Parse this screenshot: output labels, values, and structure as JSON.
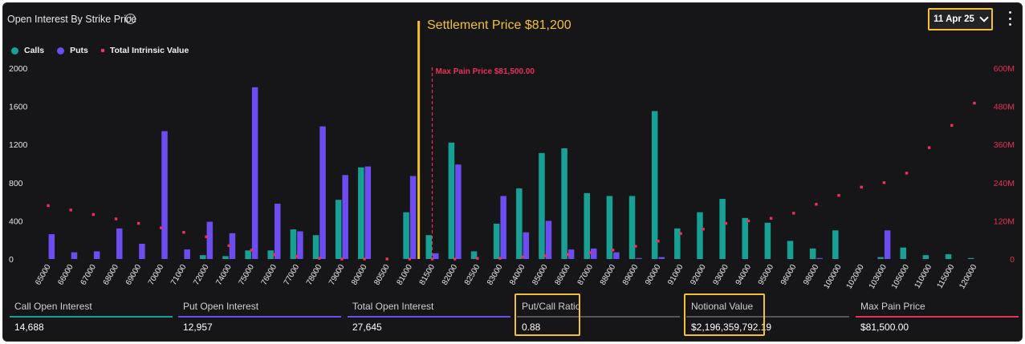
{
  "header": {
    "title": "Open Interest By Strike Price",
    "date_selected": "11 Apr 25"
  },
  "legend": {
    "calls": "Calls",
    "puts": "Puts",
    "intrinsic": "Total Intrinsic Value"
  },
  "annotation": {
    "settlement": "Settlement Price $81,200"
  },
  "colors": {
    "calls": "#17a195",
    "puts": "#6d4cf0",
    "intrinsic": "#f0305a",
    "settlement": "#f2c12e",
    "maxpain": "#e83058"
  },
  "icons": [
    "info-icon",
    "chevron-down-icon",
    "kebab-menu-icon"
  ],
  "chart_data": {
    "type": "bar",
    "categories": [
      "65000",
      "66000",
      "67000",
      "68000",
      "69000",
      "70000",
      "71000",
      "72000",
      "74000",
      "75000",
      "76000",
      "77000",
      "78000",
      "79000",
      "80000",
      "80500",
      "81000",
      "81500",
      "82000",
      "82500",
      "83000",
      "84000",
      "85000",
      "86000",
      "87000",
      "88000",
      "89000",
      "90000",
      "91000",
      "92000",
      "93000",
      "94000",
      "95000",
      "96000",
      "98000",
      "100000",
      "102000",
      "103000",
      "105000",
      "110000",
      "115000",
      "120000"
    ],
    "series": [
      {
        "name": "Calls",
        "axis": "left",
        "values": [
          0,
          0,
          0,
          0,
          0,
          0,
          0,
          40,
          30,
          90,
          90,
          310,
          250,
          620,
          960,
          0,
          490,
          250,
          1220,
          80,
          370,
          740,
          1110,
          1160,
          690,
          660,
          660,
          1550,
          320,
          490,
          630,
          430,
          380,
          190,
          110,
          300,
          0,
          20,
          120,
          40,
          50,
          10
        ]
      },
      {
        "name": "Puts",
        "axis": "left",
        "values": [
          260,
          70,
          80,
          320,
          160,
          1340,
          100,
          390,
          270,
          1800,
          580,
          290,
          1390,
          880,
          970,
          0,
          870,
          60,
          990,
          0,
          660,
          280,
          400,
          100,
          110,
          70,
          10,
          20,
          0,
          0,
          0,
          0,
          0,
          0,
          10,
          0,
          0,
          300,
          0,
          0,
          0,
          0
        ]
      },
      {
        "name": "Total Intrinsic Value",
        "axis": "right",
        "type": "scatter",
        "values": [
          168,
          154,
          140,
          126,
          112,
          98,
          84,
          70,
          42,
          28,
          14,
          8,
          2,
          0,
          0,
          0,
          0,
          0,
          0,
          2,
          2,
          6,
          10,
          14,
          20,
          28,
          40,
          56,
          80,
          94,
          112,
          120,
          128,
          144,
          172,
          200,
          226,
          240,
          270,
          350,
          420,
          490
        ]
      }
    ],
    "left_axis": {
      "ylim": [
        0,
        2000
      ],
      "ticks": [
        0,
        400,
        800,
        1200,
        1600,
        2000
      ],
      "tick_labels": [
        "0",
        "400",
        "800",
        "1200",
        "1600",
        "2000"
      ]
    },
    "right_axis": {
      "ylim": [
        0,
        600
      ],
      "unit": "M",
      "ticks": [
        0,
        120,
        240,
        360,
        480,
        600
      ],
      "tick_labels": [
        "0",
        "120M",
        "240M",
        "360M",
        "480M",
        "600M"
      ]
    },
    "settlement_price": 81200,
    "max_pain_label": "Max Pain Price $81,500.00",
    "max_pain_strike": "81500",
    "legend_position": "top-left",
    "grid": false
  },
  "stats": [
    {
      "label": "Call Open Interest",
      "value": "14,688",
      "color": "#17a195"
    },
    {
      "label": "Put Open Interest",
      "value": "12,957",
      "color": "#6d4cf0"
    },
    {
      "label": "Total Open Interest",
      "value": "27,645",
      "color": "#6d4cf0"
    },
    {
      "label": "Put/Call Ratio",
      "value": "0.88",
      "color": "#555558"
    },
    {
      "label": "Notional Value",
      "value": "$2,196,359,792.19",
      "color": "#555558"
    },
    {
      "label": "Max Pain Price",
      "value": "$81,500.00",
      "color": "#e83058"
    }
  ]
}
